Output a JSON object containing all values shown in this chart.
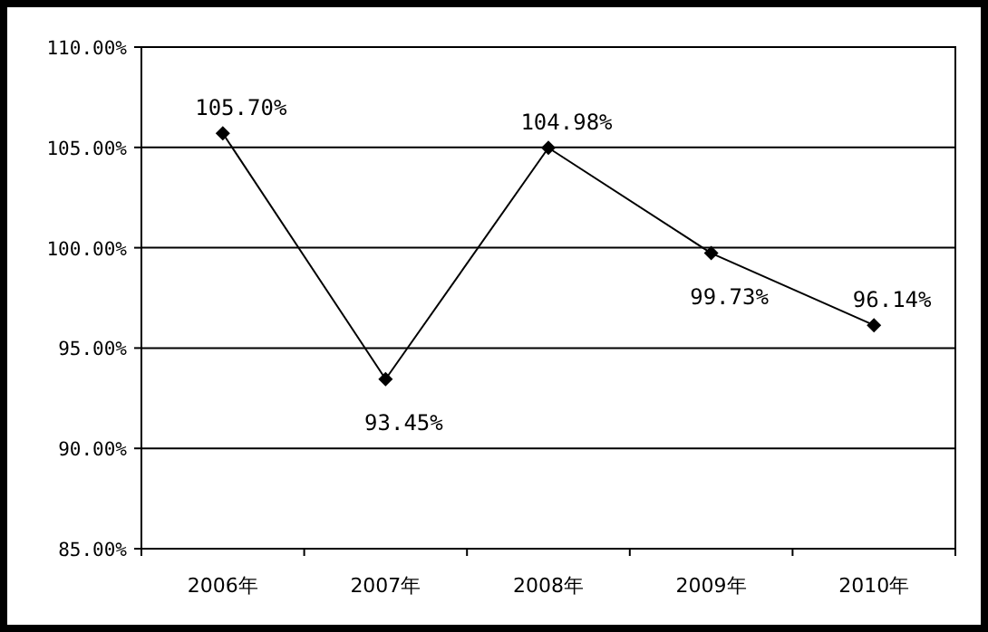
{
  "chart_data": {
    "type": "line",
    "categories": [
      "2006年",
      "2007年",
      "2008年",
      "2009年",
      "2010年"
    ],
    "series": [
      {
        "color": "#000000",
        "values": [
          105.7,
          93.45,
          104.98,
          99.73,
          96.14
        ],
        "value_labels": [
          "105.70%",
          "93.45%",
          "104.98%",
          "99.73%",
          "96.14%"
        ]
      }
    ],
    "ylim": [
      85,
      110
    ],
    "yticks": [
      {
        "value": 85,
        "label": "85.00%"
      },
      {
        "value": 90,
        "label": "90.00%"
      },
      {
        "value": 95,
        "label": "95.00%"
      },
      {
        "value": 100,
        "label": "100.00%"
      },
      {
        "value": 105,
        "label": "105.00%"
      },
      {
        "value": 110,
        "label": "110.00%"
      }
    ],
    "grid": "y",
    "marker": "diamond",
    "line_style": "solid"
  }
}
